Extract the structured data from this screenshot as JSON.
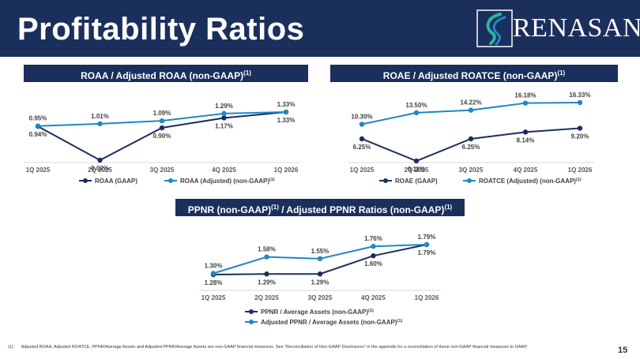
{
  "slide": {
    "title": "Profitability Ratios",
    "logo_text": "RENASANT",
    "page_number": "15",
    "footnote_number": "(1)",
    "footnote": "Adjusted ROAA, Adjusted ROATCE, PPNR/Average Assets and Adjusted PPNR/Average Assets are non-GAAP financial measures. See “Reconciliation of Non-GAAP Disclosures” in the appendix for a reconciliation of these non-GAAP financial measures to GAAP."
  },
  "colors": {
    "navy": "#1b2f5c",
    "series_dark": "#1b2f5c",
    "series_light": "#1e88c8"
  },
  "chart_data": [
    {
      "type": "line",
      "title": "ROAA / Adjusted ROAA (non-GAAP)",
      "title_sup": "(1)",
      "categories": [
        "1Q 2025",
        "2Q 2025",
        "3Q 2025",
        "4Q 2025",
        "1Q 2026"
      ],
      "series": [
        {
          "name": "ROAA (GAAP)",
          "name_sup": "",
          "values": [
            0.94,
            0.02,
            0.9,
            1.17,
            1.33
          ],
          "labels": [
            "0.94%",
            "0.02%",
            "0.90%",
            "1.17%",
            "1.33%"
          ]
        },
        {
          "name": "ROAA (Adjusted) (non-GAAP)",
          "name_sup": "(1)",
          "values": [
            0.95,
            1.01,
            1.09,
            1.29,
            1.33
          ],
          "labels": [
            "0.95%",
            "1.01%",
            "1.09%",
            "1.29%",
            "1.33%"
          ]
        }
      ],
      "legend": "bottom",
      "grid": false
    },
    {
      "type": "line",
      "title": "ROAE / Adjusted ROATCE (non-GAAP)",
      "title_sup": "(1)",
      "categories": [
        "1Q 2025",
        "2Q 2025",
        "3Q 2025",
        "4Q 2025",
        "1Q 2026"
      ],
      "series": [
        {
          "name": "ROAE (GAAP)",
          "name_sup": "",
          "values": [
            6.25,
            0.11,
            6.25,
            8.14,
            9.2
          ],
          "labels": [
            "6.25%",
            "0.11%",
            "6.25%",
            "8.14%",
            "9.20%"
          ]
        },
        {
          "name": "ROATCE (Adjusted) (non-GAAP)",
          "name_sup": "(1)",
          "values": [
            10.3,
            13.5,
            14.22,
            16.18,
            16.33
          ],
          "labels": [
            "10.30%",
            "13.50%",
            "14.22%",
            "16.18%",
            "16.33%"
          ]
        }
      ],
      "legend": "bottom",
      "grid": false
    },
    {
      "type": "line",
      "title": "PPNR (non-GAAP)",
      "title_sup": "(1)",
      "title_rest": " / Adjusted PPNR Ratios (non-GAAP)",
      "title_sup2": "(1)",
      "categories": [
        "1Q 2025",
        "2Q 2025",
        "3Q 2025",
        "4Q 2025",
        "1Q 2026"
      ],
      "series": [
        {
          "name": "PPNR / Average Assets (non-GAAP)",
          "name_sup": "(1)",
          "values": [
            1.28,
            1.29,
            1.29,
            1.6,
            1.79
          ],
          "labels": [
            "1.28%",
            "1.29%",
            "1.29%",
            "1.60%",
            "1.79%"
          ]
        },
        {
          "name": "Adjusted PPNR / Average Assets (non-GAAP)",
          "name_sup": "(1)",
          "values": [
            1.3,
            1.58,
            1.55,
            1.76,
            1.79
          ],
          "labels": [
            "1.30%",
            "1.58%",
            "1.55%",
            "1.76%",
            "1.79%"
          ]
        }
      ],
      "legend": "bottom",
      "grid": false
    }
  ]
}
